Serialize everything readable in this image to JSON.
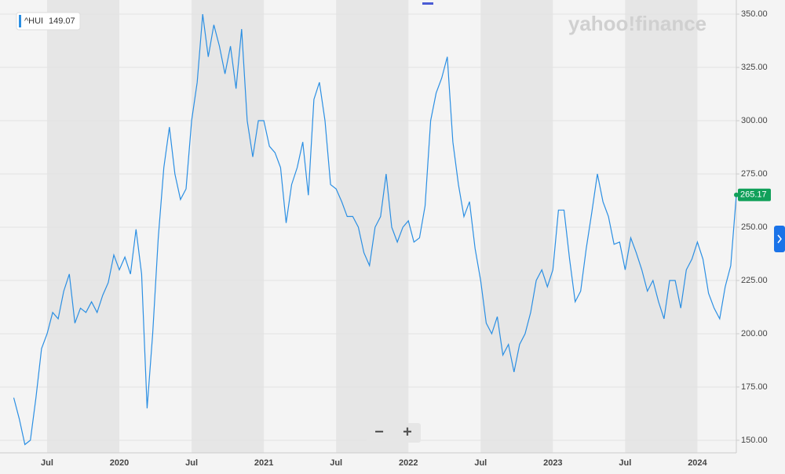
{
  "chart_data": {
    "type": "line",
    "series": [
      {
        "name": "^HUI",
        "color": "#2b8fe3",
        "values": [
          170,
          160,
          148,
          150,
          170,
          193,
          200,
          210,
          207,
          220,
          228,
          205,
          212,
          210,
          215,
          210,
          218,
          224,
          237,
          230,
          236,
          228,
          249,
          228,
          165,
          200,
          245,
          278,
          297,
          275,
          263,
          268,
          300,
          318,
          350,
          330,
          345,
          335,
          322,
          335,
          315,
          343,
          300,
          283,
          300,
          300,
          288,
          285,
          278,
          252,
          270,
          278,
          290,
          265,
          310,
          318,
          300,
          270,
          268,
          262,
          255,
          255,
          250,
          238,
          232,
          250,
          255,
          275,
          250,
          243,
          250,
          253,
          243,
          245,
          260,
          300,
          313,
          320,
          330,
          290,
          270,
          255,
          262,
          240,
          225,
          205,
          200,
          208,
          190,
          195,
          182,
          195,
          200,
          210,
          225,
          230,
          222,
          230,
          258,
          258,
          235,
          215,
          220,
          240,
          257,
          275,
          262,
          255,
          242,
          243,
          230,
          245,
          238,
          230,
          220,
          225,
          215,
          207,
          225,
          225,
          212,
          230,
          235,
          243,
          235,
          219,
          212,
          207,
          222,
          232,
          265.17
        ]
      }
    ],
    "legend_value": 149.07,
    "categories": [
      null,
      null,
      null,
      null,
      null,
      null,
      "Jul",
      null,
      null,
      null,
      null,
      null,
      null,
      null,
      null,
      null,
      null,
      null,
      null,
      "2020",
      null,
      null,
      null,
      null,
      null,
      null,
      null,
      null,
      null,
      null,
      null,
      null,
      "Jul",
      null,
      null,
      null,
      null,
      null,
      null,
      null,
      null,
      null,
      null,
      null,
      null,
      "2021",
      null,
      null,
      null,
      null,
      null,
      null,
      null,
      null,
      null,
      null,
      null,
      null,
      "Jul",
      null,
      null,
      null,
      null,
      null,
      null,
      null,
      null,
      null,
      null,
      null,
      null,
      "2022",
      null,
      null,
      null,
      null,
      null,
      null,
      null,
      null,
      null,
      null,
      null,
      null,
      "Jul",
      null,
      null,
      null,
      null,
      null,
      null,
      null,
      null,
      null,
      null,
      null,
      null,
      "2023",
      null,
      null,
      null,
      null,
      null,
      null,
      null,
      null,
      null,
      null,
      null,
      null,
      "Jul",
      null,
      null,
      null,
      null,
      null,
      null,
      null,
      null,
      null,
      null,
      null,
      null,
      "2024",
      null,
      null,
      null,
      null,
      null,
      null,
      null
    ],
    "ylim": [
      145.2,
      353.7
    ],
    "yticks": [
      {
        "value": 150,
        "label": "150.00"
      },
      {
        "value": 175,
        "label": "175.00"
      },
      {
        "value": 200,
        "label": "200.00"
      },
      {
        "value": 225,
        "label": "225.00"
      },
      {
        "value": 250,
        "label": "250.00"
      },
      {
        "value": 275,
        "label": "275.00"
      },
      {
        "value": 300,
        "label": "300.00"
      },
      {
        "value": 325,
        "label": "325.00"
      },
      {
        "value": 350,
        "label": "350.00"
      }
    ],
    "grid": true,
    "watermark": "yahoo!finance",
    "zoom_out": "−",
    "zoom_in": "+"
  }
}
